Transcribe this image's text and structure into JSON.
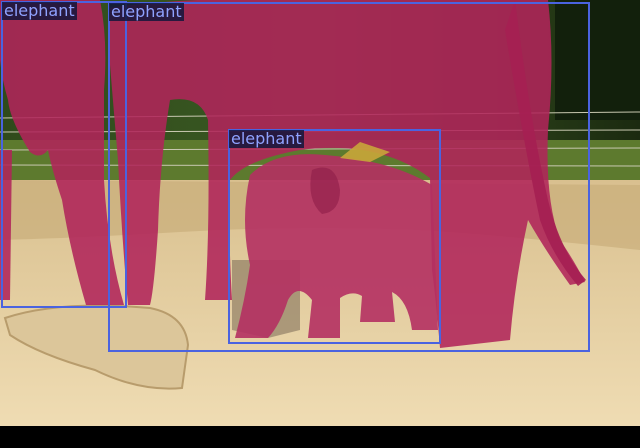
{
  "image": {
    "description_objects": "elephant detections",
    "colors": {
      "sky_dark": "#0e1a0c",
      "foliage": "#3f5c22",
      "sand": "#e7d2a7",
      "sand_shadow": "#cdb58a",
      "mask": "#b0245a",
      "box": "#4a63e0",
      "label_text": "#8fa2ff",
      "bottom_bar": "#000000"
    }
  },
  "detections": [
    {
      "label": "elephant"
    },
    {
      "label": "elephant"
    },
    {
      "label": "elephant"
    }
  ]
}
